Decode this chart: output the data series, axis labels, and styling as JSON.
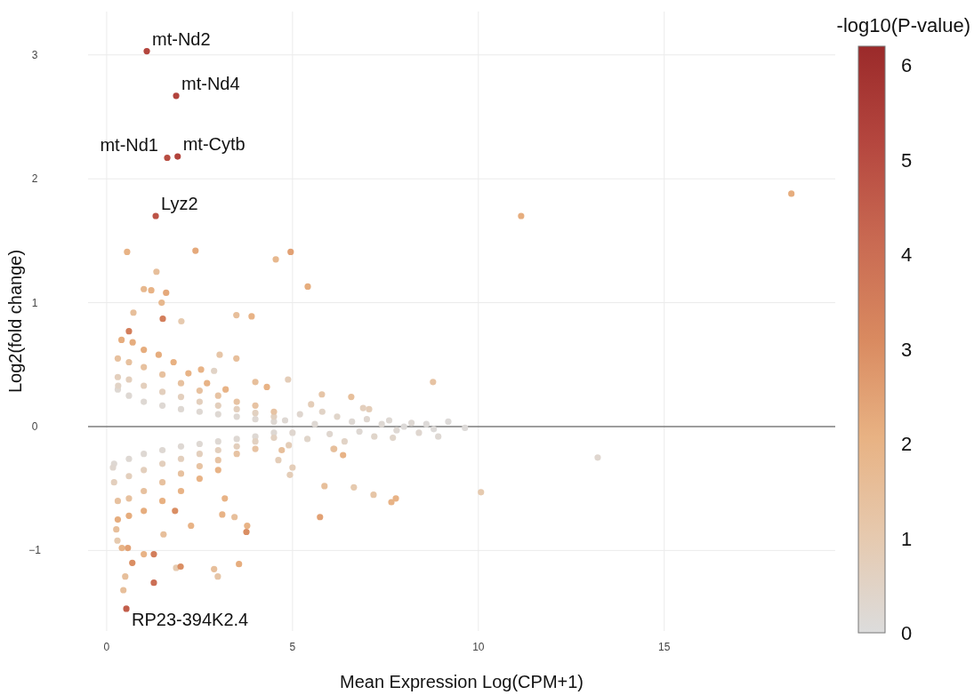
{
  "chart_data": {
    "type": "scatter",
    "xlabel": "Mean Expression Log(CPM+1)",
    "ylabel": "Log2(fold change)",
    "clabel": "-log10(P-value)",
    "xlim": [
      -0.5,
      19.6
    ],
    "ylim": [
      -1.65,
      3.35
    ],
    "xticks": [
      0,
      5,
      10,
      15
    ],
    "yticks": [
      {
        "value": -1,
        "label": "−1"
      },
      0,
      1,
      2,
      3
    ],
    "clim": [
      0,
      6.2
    ],
    "cticks": [
      0,
      1,
      2,
      3,
      4,
      5,
      6
    ],
    "grid": true,
    "marker": "circle",
    "ref_lines": [
      {
        "axis": "y",
        "value": 0,
        "color": "#444444"
      }
    ],
    "annotations": [
      {
        "text": "mt-Nd2",
        "x": 1.08,
        "y": 3.03
      },
      {
        "text": "mt-Nd4",
        "x": 1.87,
        "y": 2.67
      },
      {
        "text": "mt-Cytb",
        "x": 1.91,
        "y": 2.18
      },
      {
        "text": "mt-Nd1",
        "x": 1.63,
        "y": 2.17
      },
      {
        "text": "Lyz2",
        "x": 1.32,
        "y": 1.7
      },
      {
        "text": "RP23-394K2.4",
        "x": 0.53,
        "y": -1.47
      }
    ],
    "series": [
      {
        "x": [
          0.3,
          0.6,
          1.0,
          1.5,
          2.0,
          2.5,
          3.0,
          3.5,
          4.0,
          4.5,
          0.3,
          0.6,
          1.0,
          1.5,
          2.0,
          2.5,
          3.0,
          3.5,
          4.0,
          4.5,
          0.3,
          0.6,
          1.0,
          1.5,
          2.0,
          2.5,
          3.0,
          3.5,
          4.0,
          4.5,
          0.4,
          0.7,
          1.0,
          1.4,
          1.8,
          2.2,
          2.7,
          3.2,
          0.2,
          0.6,
          1.0,
          1.5,
          2.0,
          2.5,
          3.0,
          3.5,
          4.0,
          4.5,
          0.2,
          0.6,
          1.0,
          1.5,
          2.0,
          2.5,
          3.0,
          3.5,
          4.0,
          4.5,
          0.3,
          0.6,
          1.0,
          1.5,
          2.0,
          2.5,
          3.0,
          3.5,
          4.0,
          0.3,
          0.6,
          1.0,
          1.5,
          2.0,
          2.5,
          3.0,
          4.8,
          5.0,
          5.2,
          5.4,
          5.6,
          5.8,
          6.0,
          6.2,
          6.4,
          6.6,
          6.8,
          7.0,
          7.2,
          7.4,
          7.6,
          7.8,
          8.0,
          8.2,
          8.4,
          8.6,
          8.8,
          5.5,
          6.1,
          6.9,
          4.9,
          1.08,
          1.87,
          1.91,
          1.63,
          1.32,
          0.53,
          18.42,
          11.15,
          0.55,
          2.39,
          4.55,
          4.95,
          1.34,
          5.41,
          1.0,
          1.2,
          1.6,
          1.48,
          1.51,
          2.01,
          0.72,
          3.49,
          3.9,
          0.6,
          3.49,
          8.78,
          0.31,
          13.21,
          10.07,
          0.17,
          5.74,
          7.78,
          7.66,
          7.18,
          6.65,
          5.86,
          6.36,
          6.12,
          3.76,
          3.78,
          3.56,
          2.89,
          2.99,
          1.99,
          1.87,
          1.27,
          1.27,
          0.69,
          0.5,
          0.45,
          0.41,
          0.57,
          1.0,
          0.29,
          0.26,
          3.18,
          3.11,
          3.44,
          2.27,
          1.53,
          1.84,
          4.93,
          5.0,
          4.62,
          4.71,
          3.04,
          4.88,
          4.0,
          4.31,
          5.79,
          6.58,
          9.19,
          9.64,
          8.92,
          7.7,
          7.06,
          2.54,
          2.89
        ],
        "values": [
          0.3,
          0.25,
          0.2,
          0.17,
          0.14,
          0.12,
          0.1,
          0.08,
          0.06,
          0.04,
          0.4,
          0.38,
          0.33,
          0.28,
          0.24,
          0.2,
          0.17,
          0.14,
          0.11,
          0.08,
          0.55,
          0.52,
          0.48,
          0.42,
          0.35,
          0.29,
          0.25,
          0.2,
          0.17,
          0.12,
          0.7,
          0.68,
          0.62,
          0.58,
          0.52,
          0.43,
          0.35,
          0.3,
          -0.3,
          -0.26,
          -0.22,
          -0.19,
          -0.16,
          -0.14,
          -0.12,
          -0.1,
          -0.08,
          -0.05,
          -0.45,
          -0.4,
          -0.35,
          -0.3,
          -0.26,
          -0.22,
          -0.19,
          -0.16,
          -0.12,
          -0.09,
          -0.6,
          -0.58,
          -0.52,
          -0.45,
          -0.38,
          -0.32,
          -0.27,
          -0.22,
          -0.18,
          -0.75,
          -0.72,
          -0.68,
          -0.6,
          -0.52,
          -0.42,
          -0.35,
          0.05,
          -0.05,
          0.1,
          -0.1,
          0.02,
          0.12,
          -0.06,
          0.08,
          -0.12,
          0.04,
          -0.04,
          0.06,
          -0.08,
          0.02,
          0.05,
          -0.03,
          0.0,
          0.03,
          -0.05,
          0.02,
          -0.02,
          0.18,
          -0.18,
          0.15,
          -0.15,
          3.03,
          2.67,
          2.18,
          2.17,
          1.7,
          -1.47,
          1.88,
          1.7,
          1.41,
          1.42,
          1.35,
          1.41,
          1.25,
          1.13,
          1.11,
          1.1,
          1.08,
          1.0,
          0.87,
          0.85,
          0.92,
          0.9,
          0.89,
          0.77,
          0.55,
          0.36,
          0.33,
          -0.25,
          -0.53,
          -0.33,
          -0.73,
          -0.58,
          -0.61,
          -0.55,
          -0.49,
          -0.48,
          -0.23,
          -0.18,
          -0.85,
          -0.8,
          -1.11,
          -1.15,
          -1.21,
          -1.13,
          -1.14,
          -1.26,
          -1.03,
          -1.1,
          -1.21,
          -1.32,
          -0.98,
          -0.98,
          -1.03,
          -0.92,
          -0.83,
          -0.58,
          -0.71,
          -0.73,
          -0.8,
          -0.87,
          -0.68,
          -0.39,
          -0.33,
          -0.27,
          -0.19,
          0.58,
          0.38,
          0.36,
          0.32,
          0.26,
          0.24,
          0.04,
          -0.01,
          -0.08,
          -0.09,
          0.14,
          0.46,
          0.45
        ],
        "cvalues": [
          0.2,
          0.2,
          0.2,
          0.2,
          0.2,
          0.2,
          0.2,
          0.2,
          0.2,
          0.2,
          0.7,
          0.7,
          0.7,
          0.7,
          0.7,
          0.7,
          0.7,
          0.7,
          0.6,
          0.6,
          1.4,
          1.4,
          1.4,
          1.4,
          1.4,
          1.4,
          1.3,
          1.3,
          1.3,
          1.3,
          2.2,
          2.2,
          2.2,
          2.2,
          2.1,
          2.0,
          2.0,
          2.0,
          0.2,
          0.2,
          0.2,
          0.2,
          0.2,
          0.2,
          0.2,
          0.2,
          0.2,
          0.2,
          0.7,
          0.7,
          0.7,
          0.7,
          0.7,
          0.7,
          0.7,
          0.7,
          0.6,
          0.6,
          1.4,
          1.4,
          1.4,
          1.4,
          1.4,
          1.3,
          1.3,
          1.3,
          1.3,
          2.2,
          2.2,
          2.2,
          2.1,
          2.0,
          2.0,
          2.0,
          0.2,
          0.3,
          0.3,
          0.4,
          0.2,
          0.5,
          0.3,
          0.4,
          0.5,
          0.2,
          0.2,
          0.3,
          0.4,
          0.2,
          0.2,
          0.2,
          0.1,
          0.2,
          0.3,
          0.1,
          0.1,
          0.8,
          0.8,
          0.7,
          0.8,
          5.2,
          5.3,
          5.3,
          5.0,
          4.8,
          4.5,
          2.2,
          2.2,
          2.0,
          2.3,
          1.8,
          2.5,
          1.5,
          2.2,
          1.8,
          2.0,
          2.3,
          1.8,
          3.5,
          1.0,
          1.5,
          1.5,
          2.0,
          3.5,
          1.5,
          1.3,
          0.5,
          0.3,
          1.0,
          0.3,
          2.5,
          2.0,
          2.0,
          1.2,
          1.0,
          1.5,
          2.0,
          1.5,
          3.0,
          2.0,
          2.2,
          1.5,
          1.2,
          3.0,
          1.0,
          4.0,
          3.5,
          3.0,
          1.5,
          1.5,
          2.0,
          2.5,
          2.0,
          1.0,
          1.5,
          2.0,
          2.0,
          1.5,
          2.0,
          1.5,
          3.0,
          0.8,
          0.8,
          0.8,
          1.5,
          1.2,
          0.8,
          1.5,
          2.0,
          1.2,
          1.5,
          0.1,
          0.1,
          0.2,
          0.4,
          0.8,
          2.0,
          0.5
        ]
      }
    ]
  }
}
